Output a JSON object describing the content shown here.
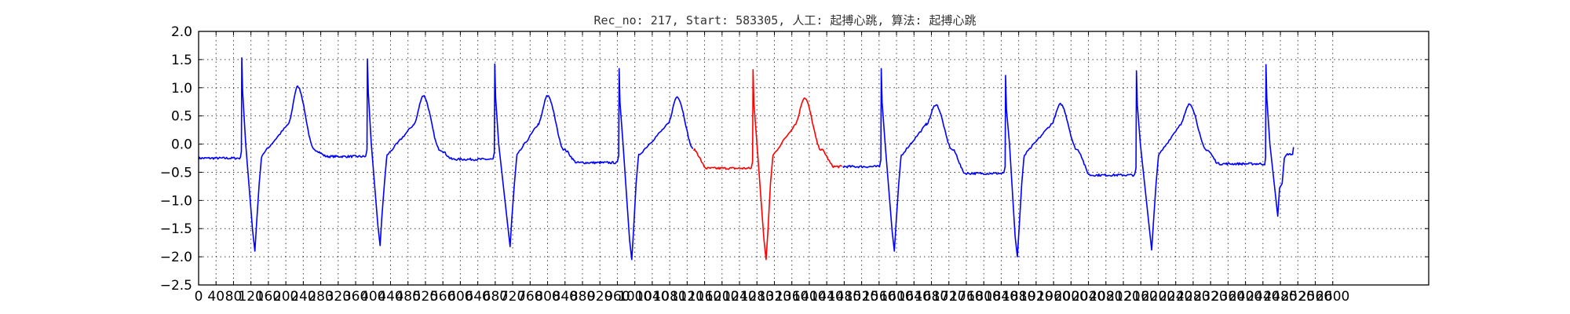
{
  "chart_data": {
    "type": "line",
    "title": "Rec_no: 217, Start: 583305, 人工: 起搏心跳, 算法: 起搏心跳",
    "xlabel": "",
    "ylabel": "",
    "xlim": [
      0,
      2820
    ],
    "ylim": [
      -2.5,
      2.0
    ],
    "grid": true,
    "y_ticks": [
      "2.0",
      "1.5",
      "1.0",
      "0.5",
      "0.0",
      "−0.5",
      "−1.0",
      "−1.5",
      "−2.0",
      "−2.5"
    ],
    "x_tick_labels": [
      "0",
      "40",
      "80",
      "120",
      "160",
      "200",
      "240",
      "280",
      "320",
      "360",
      "400",
      "440",
      "480",
      "520",
      "560",
      "600",
      "640",
      "680",
      "720",
      "760",
      "800",
      "840",
      "880",
      "920",
      "960",
      "1000",
      "1040",
      "1080",
      "1120",
      "1160",
      "1200",
      "1240",
      "1280",
      "1320",
      "1360",
      "1400",
      "1440",
      "1480",
      "1520",
      "1560",
      "1600",
      "1640",
      "1680",
      "1720",
      "1760",
      "1800",
      "1840",
      "1880",
      "1920",
      "1960",
      "2000",
      "2040",
      "2080",
      "2120",
      "2160",
      "2200",
      "2240",
      "2280",
      "2320",
      "2360",
      "2400",
      "2440",
      "2480",
      "2520",
      "2560",
      "2600"
    ],
    "beats": [
      {
        "spike_x": 99,
        "spike_y": 1.53,
        "trough_x": 129,
        "trough_y": -1.9,
        "t_peak_x": 227,
        "t_peak_y": 1.02,
        "base_y": -0.25,
        "color": "#0000ff"
      },
      {
        "spike_x": 387,
        "spike_y": 1.51,
        "trough_x": 416,
        "trough_y": -1.8,
        "t_peak_x": 515,
        "t_peak_y": 0.86,
        "base_y": -0.22,
        "color": "#0000ff"
      },
      {
        "spike_x": 679,
        "spike_y": 1.42,
        "trough_x": 714,
        "trough_y": -1.82,
        "t_peak_x": 800,
        "t_peak_y": 0.86,
        "base_y": -0.27,
        "color": "#0000ff"
      },
      {
        "spike_x": 964,
        "spike_y": 1.34,
        "trough_x": 993,
        "trough_y": -2.05,
        "t_peak_x": 1097,
        "t_peak_y": 0.84,
        "base_y": -0.33,
        "color": "#0000ff"
      },
      {
        "spike_x": 1271,
        "spike_y": 1.32,
        "trough_x": 1301,
        "trough_y": -2.05,
        "t_peak_x": 1389,
        "t_peak_y": 0.82,
        "base_y": -0.43,
        "color": "#ff0000"
      },
      {
        "spike_x": 1565,
        "spike_y": 1.34,
        "trough_x": 1595,
        "trough_y": -1.9,
        "t_peak_x": 1690,
        "t_peak_y": 0.7,
        "base_y": -0.4,
        "color": "#0000ff"
      },
      {
        "spike_x": 1850,
        "spike_y": 1.22,
        "trough_x": 1877,
        "trough_y": -2.0,
        "t_peak_x": 1976,
        "t_peak_y": 0.71,
        "base_y": -0.52,
        "color": "#0000ff"
      },
      {
        "spike_x": 2150,
        "spike_y": 1.3,
        "trough_x": 2185,
        "trough_y": -1.88,
        "t_peak_x": 2272,
        "t_peak_y": 0.71,
        "base_y": -0.55,
        "color": "#0000ff"
      },
      {
        "spike_x": 2447,
        "spike_y": 1.41,
        "trough_x": 2474,
        "trough_y": -1.28,
        "t_peak_x": null,
        "t_peak_y": null,
        "base_y": -0.35,
        "color": "#0000ff"
      }
    ],
    "segments": [
      {
        "x_start": 0,
        "x_end": 1134,
        "color": "#0000ff"
      },
      {
        "x_start": 1134,
        "x_end": 1476,
        "color": "#ff0000"
      },
      {
        "x_start": 1476,
        "x_end": 2510,
        "color": "#0000ff"
      }
    ],
    "end_x": 2510,
    "end_y": -0.07
  }
}
